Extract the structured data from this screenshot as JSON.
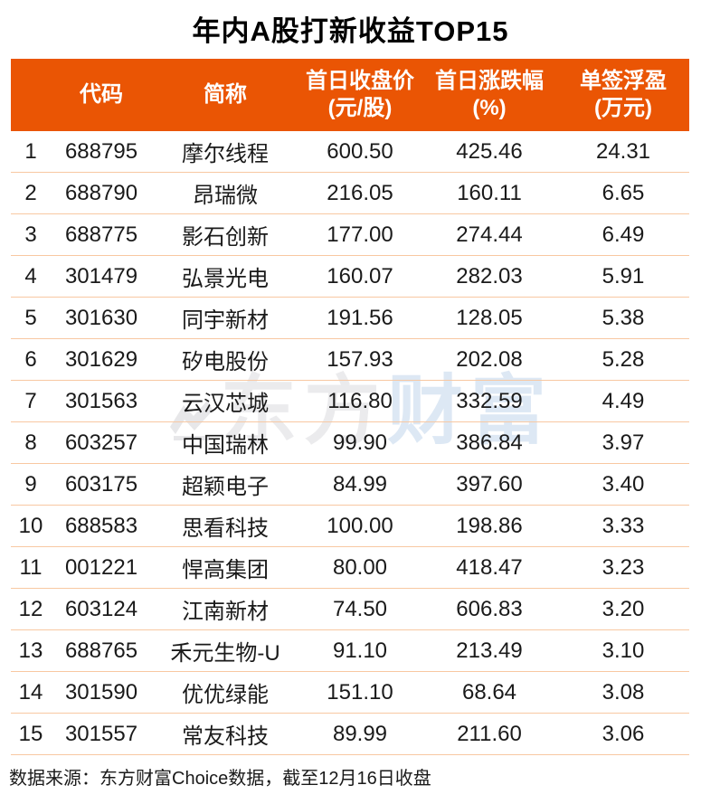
{
  "page": {
    "title": "年内A股打新收益TOP15"
  },
  "table": {
    "columns": [
      {
        "label": "",
        "unit": ""
      },
      {
        "label": "代码",
        "unit": ""
      },
      {
        "label": "简称",
        "unit": ""
      },
      {
        "label": "首日收盘价",
        "unit": "(元/股)"
      },
      {
        "label": "首日涨跌幅",
        "unit": "(%)"
      },
      {
        "label": "单签浮盈",
        "unit": "(万元)"
      }
    ],
    "rows": [
      {
        "rank": "1",
        "code": "688795",
        "name": "摩尔线程",
        "close": "600.50",
        "change": "425.46",
        "profit": "24.31"
      },
      {
        "rank": "2",
        "code": "688790",
        "name": "昂瑞微",
        "close": "216.05",
        "change": "160.11",
        "profit": "6.65"
      },
      {
        "rank": "3",
        "code": "688775",
        "name": "影石创新",
        "close": "177.00",
        "change": "274.44",
        "profit": "6.49"
      },
      {
        "rank": "4",
        "code": "301479",
        "name": "弘景光电",
        "close": "160.07",
        "change": "282.03",
        "profit": "5.91"
      },
      {
        "rank": "5",
        "code": "301630",
        "name": "同宇新材",
        "close": "191.56",
        "change": "128.05",
        "profit": "5.38"
      },
      {
        "rank": "6",
        "code": "301629",
        "name": "矽电股份",
        "close": "157.93",
        "change": "202.08",
        "profit": "5.28"
      },
      {
        "rank": "7",
        "code": "301563",
        "name": "云汉芯城",
        "close": "116.80",
        "change": "332.59",
        "profit": "4.49"
      },
      {
        "rank": "8",
        "code": "603257",
        "name": "中国瑞林",
        "close": "99.90",
        "change": "386.84",
        "profit": "3.97"
      },
      {
        "rank": "9",
        "code": "603175",
        "name": "超颖电子",
        "close": "84.99",
        "change": "397.60",
        "profit": "3.40"
      },
      {
        "rank": "10",
        "code": "688583",
        "name": "思看科技",
        "close": "100.00",
        "change": "198.86",
        "profit": "3.33"
      },
      {
        "rank": "11",
        "code": "001221",
        "name": "悍高集团",
        "close": "80.00",
        "change": "418.47",
        "profit": "3.23"
      },
      {
        "rank": "12",
        "code": "603124",
        "name": "江南新材",
        "close": "74.50",
        "change": "606.83",
        "profit": "3.20"
      },
      {
        "rank": "13",
        "code": "688765",
        "name": "禾元生物-U",
        "close": "91.10",
        "change": "213.49",
        "profit": "3.10"
      },
      {
        "rank": "14",
        "code": "301590",
        "name": "优优绿能",
        "close": "151.10",
        "change": "68.64",
        "profit": "3.08"
      },
      {
        "rank": "15",
        "code": "301557",
        "name": "常友科技",
        "close": "89.99",
        "change": "211.60",
        "profit": "3.06"
      }
    ]
  },
  "watermark": {
    "text_gray": "东方",
    "text_blue": "财富"
  },
  "footer": {
    "source": "数据来源：东方财富Choice数据，截至12月16日收盘"
  },
  "colors": {
    "header_bg": "#ea5504",
    "header_text": "#ffffff",
    "row_divider": "#f8c8a2",
    "title_text": "#000000",
    "body_text": "#1a1a1a",
    "watermark_gray": "#ebebed",
    "watermark_blue": "#dde8f4"
  },
  "chart_data": {
    "type": "table",
    "title": "年内A股打新收益TOP15",
    "columns": [
      "",
      "代码",
      "简称",
      "首日收盘价(元/股)",
      "首日涨跌幅(%)",
      "单签浮盈(万元)"
    ],
    "rows": [
      [
        1,
        "688795",
        "摩尔线程",
        600.5,
        425.46,
        24.31
      ],
      [
        2,
        "688790",
        "昂瑞微",
        216.05,
        160.11,
        6.65
      ],
      [
        3,
        "688775",
        "影石创新",
        177.0,
        274.44,
        6.49
      ],
      [
        4,
        "301479",
        "弘景光电",
        160.07,
        282.03,
        5.91
      ],
      [
        5,
        "301630",
        "同宇新材",
        191.56,
        128.05,
        5.38
      ],
      [
        6,
        "301629",
        "矽电股份",
        157.93,
        202.08,
        5.28
      ],
      [
        7,
        "301563",
        "云汉芯城",
        116.8,
        332.59,
        4.49
      ],
      [
        8,
        "603257",
        "中国瑞林",
        99.9,
        386.84,
        3.97
      ],
      [
        9,
        "603175",
        "超颖电子",
        84.99,
        397.6,
        3.4
      ],
      [
        10,
        "688583",
        "思看科技",
        100.0,
        198.86,
        3.33
      ],
      [
        11,
        "001221",
        "悍高集团",
        80.0,
        418.47,
        3.23
      ],
      [
        12,
        "603124",
        "江南新材",
        74.5,
        606.83,
        3.2
      ],
      [
        13,
        "688765",
        "禾元生物-U",
        91.1,
        213.49,
        3.1
      ],
      [
        14,
        "301590",
        "优优绿能",
        151.1,
        68.64,
        3.08
      ],
      [
        15,
        "301557",
        "常友科技",
        89.99,
        211.6,
        3.06
      ]
    ],
    "footnote": "数据来源：东方财富Choice数据，截至12月16日收盘"
  }
}
